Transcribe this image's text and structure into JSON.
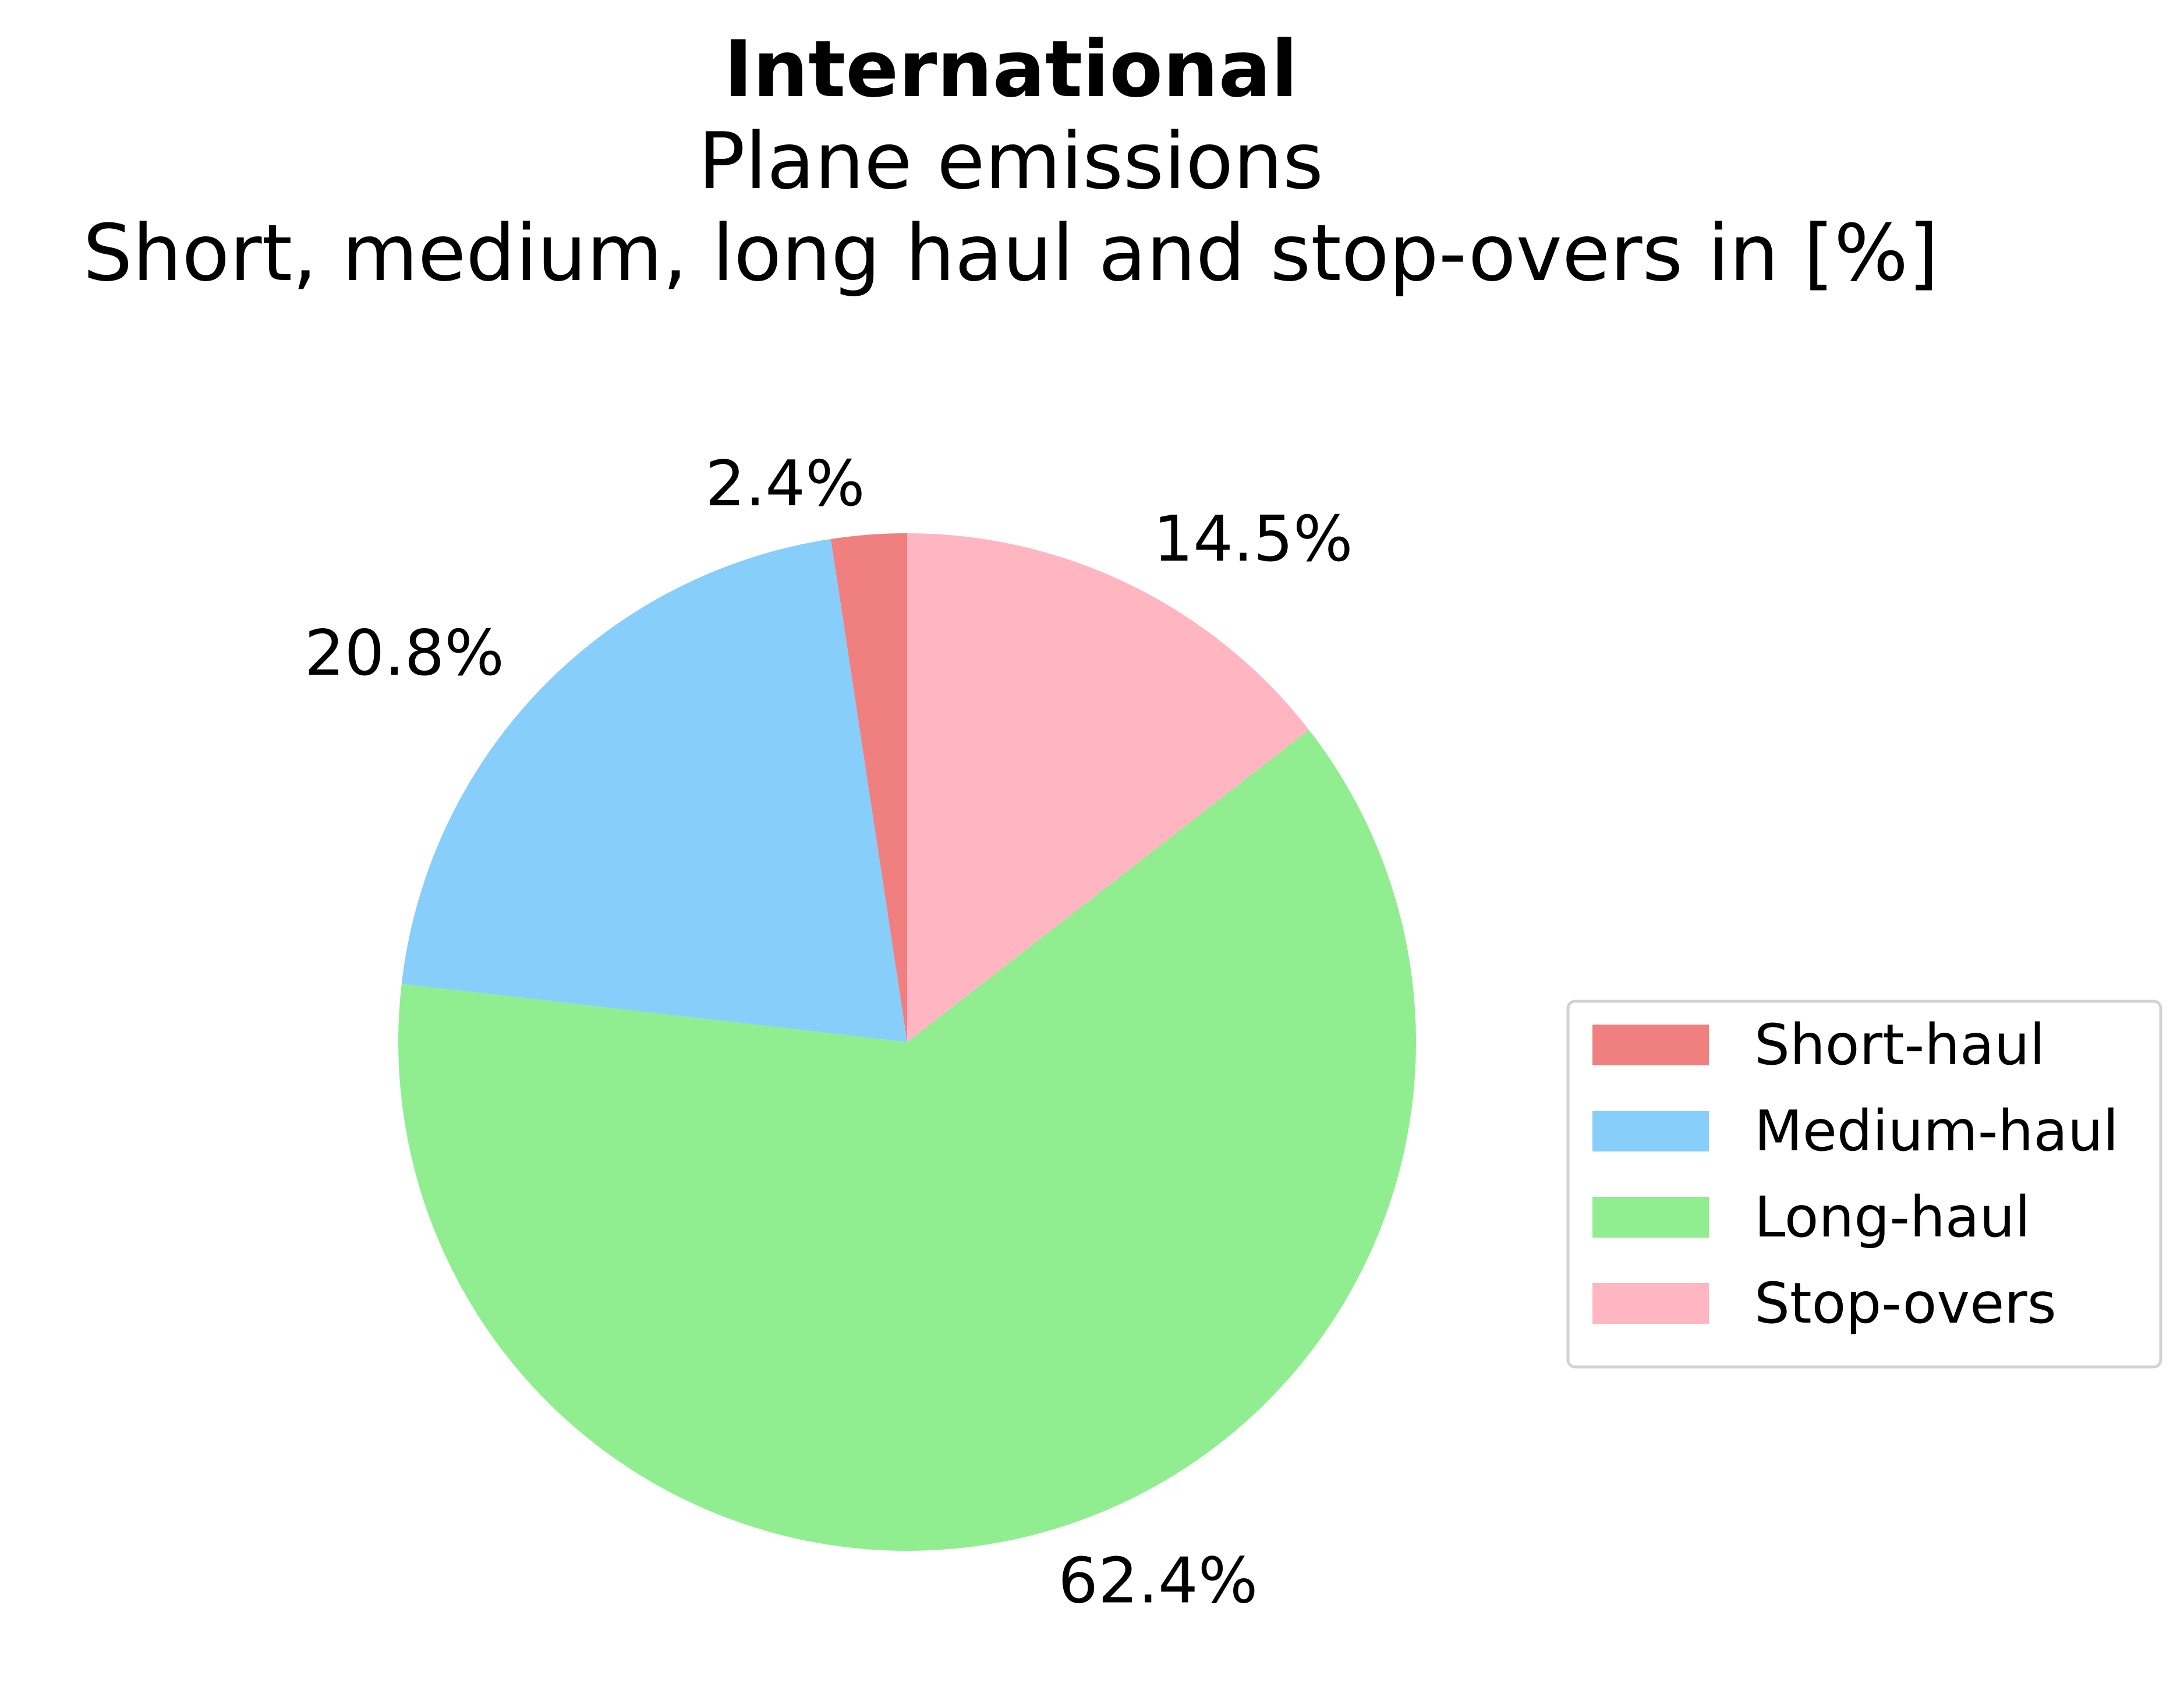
{
  "chart_data": {
    "type": "pie",
    "title": "International",
    "subtitle_lines": [
      "Plane emissions",
      "Short, medium, long haul and stop-overs in [%]"
    ],
    "slices": [
      {
        "label": "Short-haul",
        "value": 2.4,
        "display": "2.4%",
        "color": "#f08080"
      },
      {
        "label": "Medium-haul",
        "value": 20.8,
        "display": "20.8%",
        "color": "#87cefa"
      },
      {
        "label": "Long-haul",
        "value": 62.4,
        "display": "62.4%",
        "color": "#90ee90"
      },
      {
        "label": "Stop-overs",
        "value": 14.5,
        "display": "14.5%",
        "color": "#ffb6c1"
      }
    ],
    "start_angle_deg": 90,
    "direction": "counterclockwise",
    "legend_placement": "center-right"
  }
}
